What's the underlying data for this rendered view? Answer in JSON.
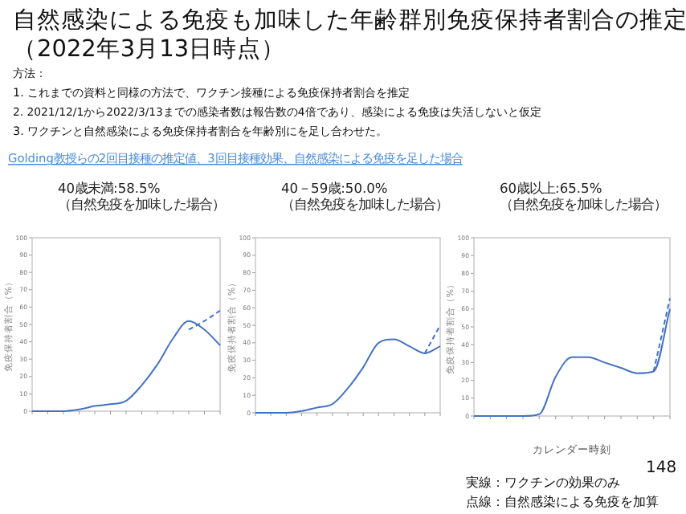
{
  "chart_data": [
    {
      "type": "line",
      "title": "40歳未満:58.5%\n（自然免疫を加味した場合）",
      "ylabel": "免疫保持者割合（%）",
      "annotations": [
        "自然感染による免疫も加味した年齢群別免疫保持者割合の推定",
        "（2022年3月13日時点）",
        "方法：",
        "1. これまでの資料と同様の方法で、ワクチン接種による免疫保持者割合を推定",
        "2. 2021/12/1から2022/3/13までの感染者数は報告数の4倍であり、感染による免疫は失活しないと仮定",
        "3. ワクチンと自然感染による免疫保持者割合を年齢別にを足し合わせた。",
        "Golding教授らの2回目接種の推定値、3回目接種効果、自然感染による免疫を足した場合",
        "実線：ワクチンの効果のみ",
        "点線：自然感染による免疫を加算",
        "148"
      ],
      "categories": [
        null,
        null,
        null,
        null,
        null,
        null,
        null,
        null,
        null,
        null,
        null,
        null,
        null
      ],
      "ylim": [
        0,
        100
      ],
      "yticks": [
        0,
        10,
        20,
        30,
        40,
        50,
        60,
        70,
        80,
        90,
        100
      ],
      "series": [
        {
          "color": "#4472c4",
          "line_style": "solid",
          "values": [
            0,
            0,
            0,
            1,
            3,
            4,
            6,
            15,
            27,
            42,
            52,
            47,
            38
          ]
        },
        {
          "color": "#4472c4",
          "line_style": "dashed",
          "values": [
            null,
            null,
            null,
            null,
            null,
            null,
            null,
            null,
            null,
            null,
            47,
            52,
            58
          ]
        }
      ]
    },
    {
      "type": "line",
      "title": "40－59歳:50.0%\n（自然免疫を加味した場合）",
      "ylabel": "免疫保持者割合（%）",
      "categories": [
        null,
        null,
        null,
        null,
        null,
        null,
        null,
        null,
        null,
        null,
        null,
        null,
        null
      ],
      "ylim": [
        0,
        100
      ],
      "yticks": [
        0,
        10,
        20,
        30,
        40,
        50,
        60,
        70,
        80,
        90,
        100
      ],
      "series": [
        {
          "color": "#4472c4",
          "line_style": "solid",
          "values": [
            0,
            0,
            0,
            1,
            3,
            5,
            14,
            26,
            40,
            42,
            38,
            34,
            38
          ]
        },
        {
          "color": "#4472c4",
          "line_style": "dashed",
          "values": [
            null,
            null,
            null,
            null,
            null,
            null,
            null,
            null,
            null,
            null,
            null,
            34,
            50
          ]
        }
      ]
    },
    {
      "type": "line",
      "title": "60歳以上:65.5%\n（自然免疫を加味した場合）",
      "ylabel": "免疫保持者割合（%）",
      "xlabel": "カレンダー時刻",
      "categories": [
        null,
        null,
        null,
        null,
        null,
        null,
        null,
        null,
        null,
        null,
        null,
        null,
        null
      ],
      "ylim": [
        0,
        100
      ],
      "yticks": [
        0,
        10,
        20,
        30,
        40,
        50,
        60,
        70,
        80,
        90,
        100
      ],
      "series": [
        {
          "color": "#4472c4",
          "line_style": "solid",
          "values": [
            0,
            0,
            0,
            0,
            1,
            22,
            33,
            33,
            30,
            27,
            24,
            25,
            60
          ]
        },
        {
          "color": "#4472c4",
          "line_style": "dashed",
          "values": [
            null,
            null,
            null,
            null,
            null,
            null,
            null,
            null,
            null,
            null,
            null,
            25,
            66
          ]
        }
      ]
    }
  ]
}
